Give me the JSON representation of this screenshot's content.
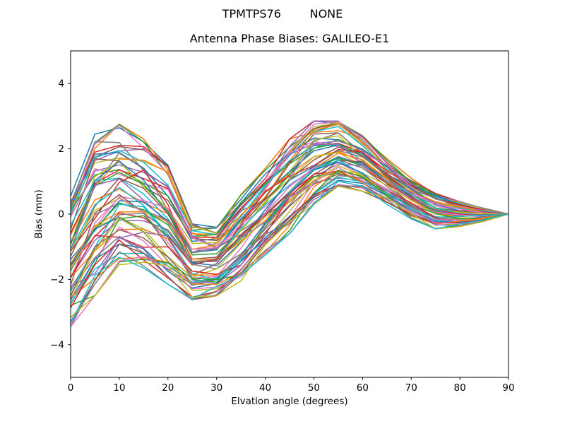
{
  "figure": {
    "background": "#ffffff",
    "suptitle": "TPMTPS76        NONE"
  },
  "chart_data": {
    "type": "line",
    "suptitle": "TPMTPS76        NONE",
    "title": "Antenna Phase Biases: GALILEO-E1",
    "xlabel": "Elvation angle (degrees)",
    "ylabel": "Bias (mm)",
    "xlim": [
      0,
      90
    ],
    "ylim": [
      -5,
      5
    ],
    "xticks": [
      0,
      10,
      20,
      30,
      40,
      50,
      60,
      70,
      80,
      90
    ],
    "xtick_labels": [
      "0",
      "10",
      "20",
      "30",
      "40",
      "50",
      "60",
      "70",
      "80",
      "90"
    ],
    "yticks": [
      -4,
      -2,
      0,
      2,
      4
    ],
    "ytick_labels": [
      "−4",
      "−2",
      "0",
      "2",
      "4"
    ],
    "grid": false,
    "legend": null,
    "axes_color": "#000000",
    "text_color": "#000000",
    "line_width": 1.5,
    "x": [
      0,
      5,
      10,
      15,
      20,
      25,
      30,
      35,
      40,
      45,
      50,
      55,
      60,
      65,
      70,
      75,
      80,
      85,
      90
    ],
    "n_series": 60,
    "series_description": "ensemble of antenna phase bias curves, one per antenna/satellite, unlabeled",
    "envelope_upper": [
      0.55,
      2.45,
      2.75,
      2.3,
      1.5,
      -0.3,
      -0.4,
      0.6,
      1.4,
      2.3,
      2.85,
      2.85,
      2.4,
      1.7,
      1.1,
      0.65,
      0.38,
      0.18,
      0
    ],
    "envelope_lower": [
      -3.45,
      -2.5,
      -1.55,
      -1.65,
      -2.15,
      -2.62,
      -2.5,
      -2.05,
      -1.25,
      -0.6,
      0.3,
      0.85,
      0.7,
      0.3,
      -0.15,
      -0.45,
      -0.38,
      -0.22,
      0
    ],
    "value_at_90_all_series": 0,
    "color_cycle": [
      "#1f77b4",
      "#ff7f0e",
      "#2ca02c",
      "#d62728",
      "#9467bd",
      "#8c564b",
      "#e377c2",
      "#7f7f7f",
      "#bcbd22",
      "#17becf"
    ]
  }
}
